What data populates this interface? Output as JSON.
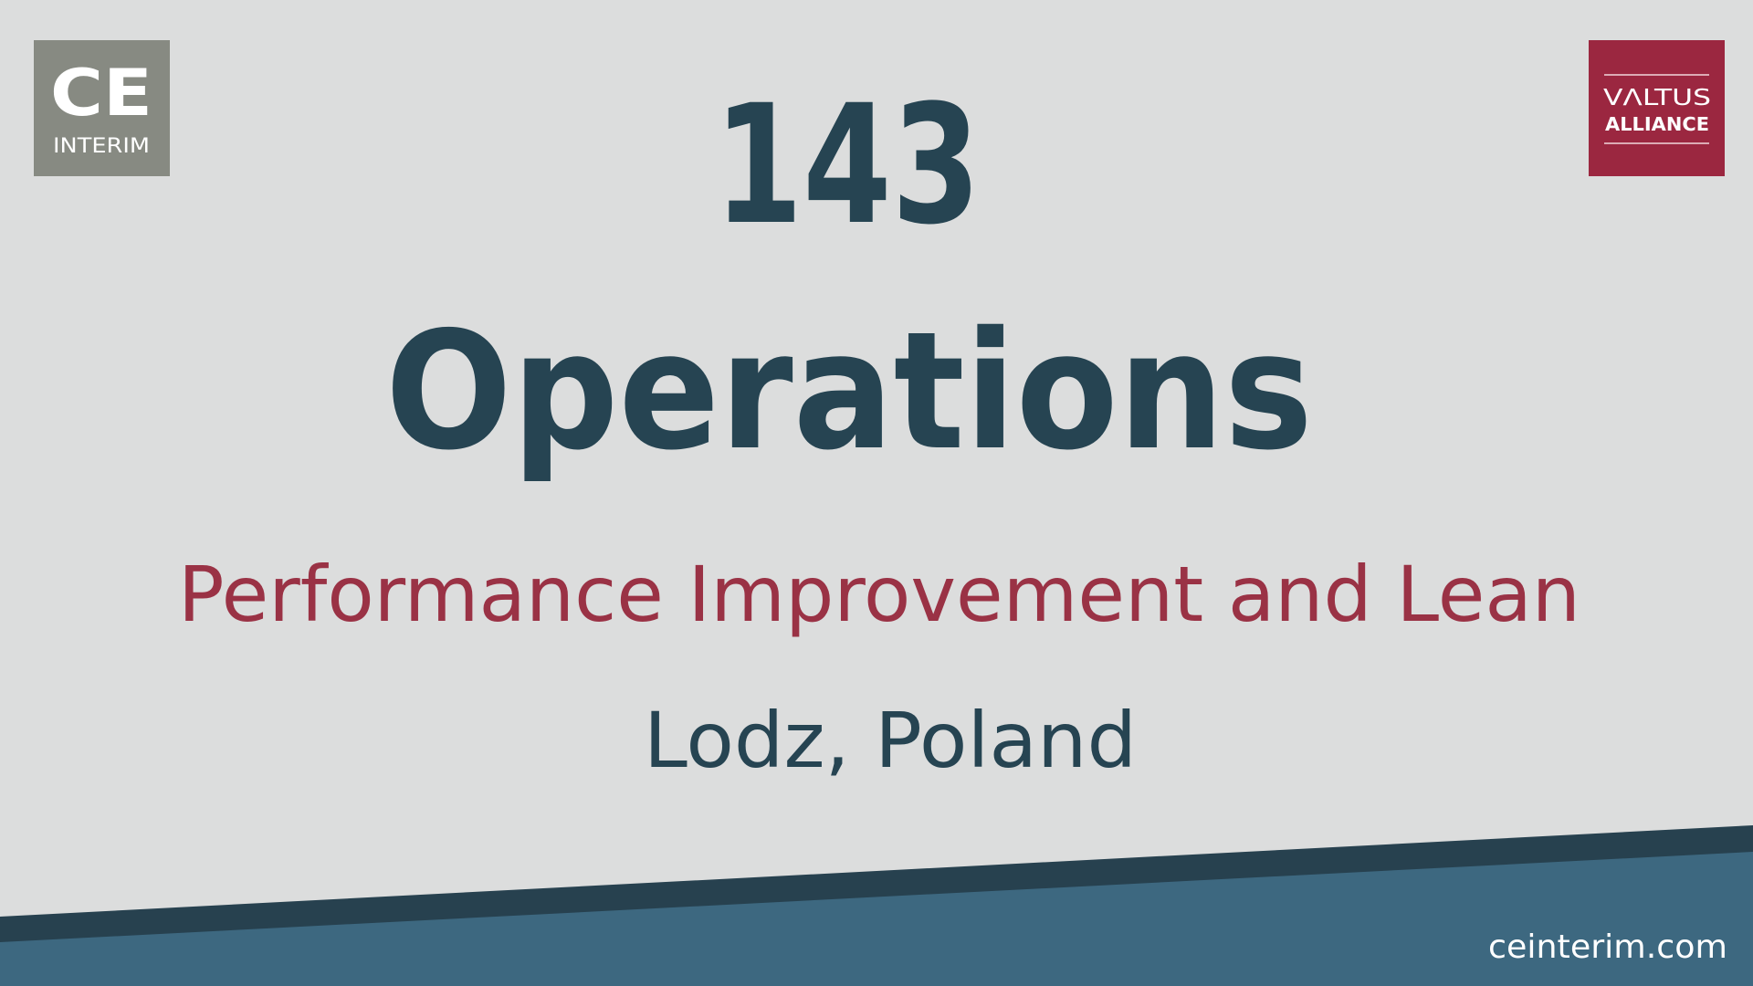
{
  "logo_left": {
    "title": "CE",
    "subtitle": "INTERIM"
  },
  "logo_right": {
    "title": "VΛLTUS",
    "subtitle": "ALLIANCE"
  },
  "headline": {
    "number": "143",
    "title": "Operations"
  },
  "subtitle": "Performance Improvement and Lean",
  "location": "Lodz, Poland",
  "footer": {
    "website": "ceinterim.com"
  }
}
